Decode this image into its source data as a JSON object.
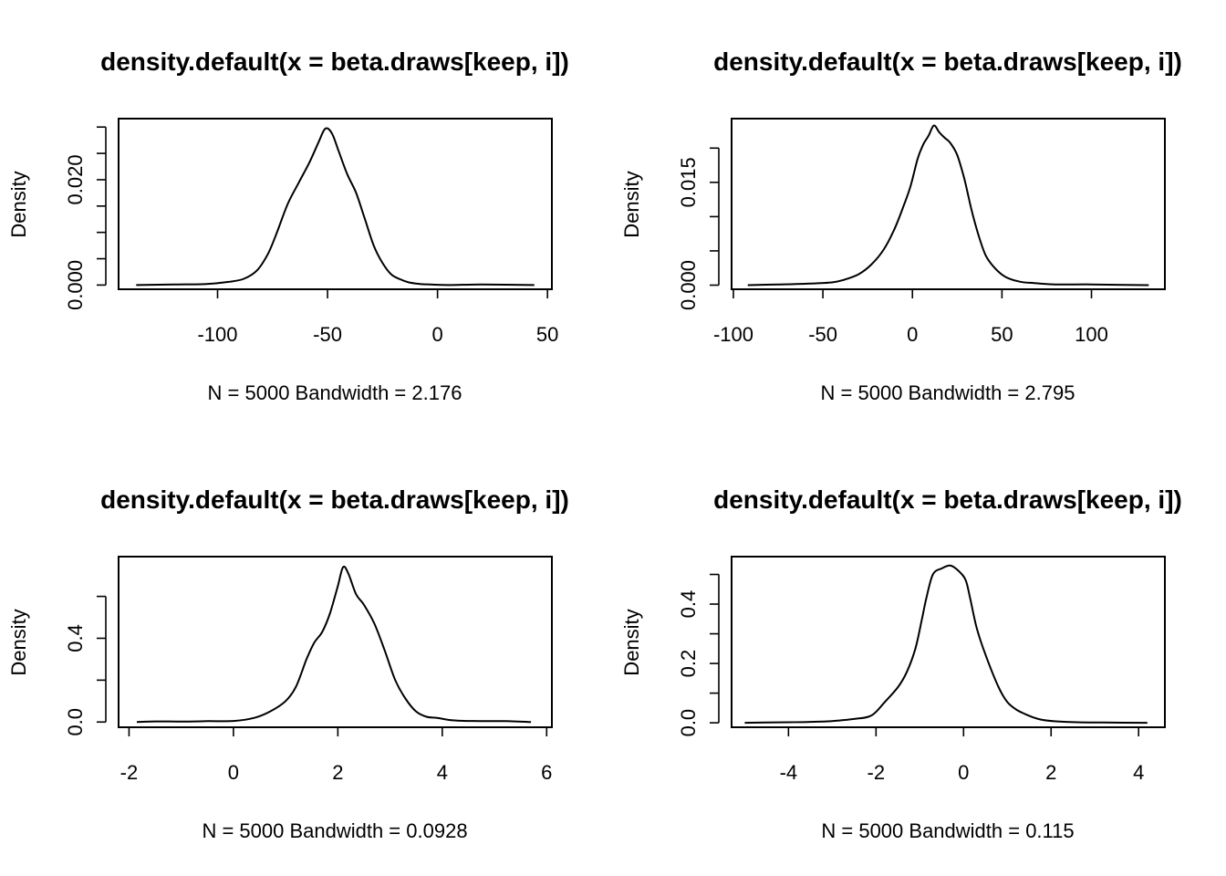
{
  "chart_data": [
    {
      "type": "line",
      "title": "density.default(x = beta.draws[keep, i])",
      "xlabel": "N = 5000   Bandwidth = 2.176",
      "ylabel": "Density",
      "xlim": [
        -145,
        52
      ],
      "ylim": [
        -0.0008,
        0.0316
      ],
      "xticks": [
        -100,
        -50,
        0,
        50
      ],
      "xtick_labels": [
        "-100",
        "-50",
        "0",
        "50"
      ],
      "yticks": [
        0,
        0.005,
        0.01,
        0.015,
        0.02,
        0.025,
        0.03
      ],
      "ytick_labels": [
        "0.000",
        "",
        "",
        "",
        "0.020",
        "",
        ""
      ],
      "x": [
        -137,
        -120,
        -105,
        -95,
        -88,
        -82,
        -77,
        -73,
        -68,
        -63,
        -58,
        -54,
        -51,
        -48,
        -45,
        -41,
        -37,
        -33,
        -29,
        -25,
        -21,
        -17,
        -13,
        -8,
        -3,
        5,
        20,
        44
      ],
      "y": [
        0,
        0.0001,
        0.0002,
        0.0006,
        0.0012,
        0.0028,
        0.006,
        0.01,
        0.0155,
        0.0195,
        0.0235,
        0.0272,
        0.0297,
        0.0288,
        0.0255,
        0.021,
        0.0175,
        0.0125,
        0.0075,
        0.0042,
        0.002,
        0.0011,
        0.0005,
        0.0002,
        0.0001,
        0,
        0.0001,
        0
      ]
    },
    {
      "type": "line",
      "title": "density.default(x = beta.draws[keep, i])",
      "xlabel": "N = 5000   Bandwidth = 2.795",
      "ylabel": "Density",
      "xlim": [
        -101,
        141
      ],
      "ylim": [
        -0.0006,
        0.0243
      ],
      "xticks": [
        -100,
        -50,
        0,
        50,
        100
      ],
      "xtick_labels": [
        "-100",
        "-50",
        "0",
        "50",
        "100"
      ],
      "yticks": [
        0,
        0.005,
        0.01,
        0.015,
        0.02
      ],
      "ytick_labels": [
        "0.000",
        "",
        "",
        "0.015",
        ""
      ],
      "x": [
        -92,
        -75,
        -60,
        -45,
        -38,
        -30,
        -23,
        -16,
        -10,
        -5,
        -1,
        3,
        6,
        9,
        12,
        15,
        18,
        21,
        25,
        29,
        33,
        37,
        41,
        46,
        52,
        60,
        68,
        80,
        100,
        132
      ],
      "y": [
        0,
        0.0001,
        0.0002,
        0.0004,
        0.0008,
        0.0016,
        0.003,
        0.0052,
        0.0082,
        0.0115,
        0.0145,
        0.0185,
        0.0205,
        0.0218,
        0.0233,
        0.0223,
        0.0215,
        0.0208,
        0.019,
        0.0155,
        0.011,
        0.0072,
        0.0043,
        0.0025,
        0.0012,
        0.0005,
        0.0003,
        0.0001,
        0.0001,
        0
      ]
    },
    {
      "type": "line",
      "title": "density.default(x = beta.draws[keep, i])",
      "xlabel": "N = 5000   Bandwidth = 0.0928",
      "ylabel": "Density",
      "xlim": [
        -2.2,
        6.1
      ],
      "ylim": [
        -0.025,
        0.79
      ],
      "xticks": [
        -2,
        0,
        2,
        4,
        6
      ],
      "xtick_labels": [
        "-2",
        "0",
        "2",
        "4",
        "6"
      ],
      "yticks": [
        0,
        0.2,
        0.4,
        0.6
      ],
      "ytick_labels": [
        "0.0",
        "",
        "0.4",
        ""
      ],
      "x": [
        -1.85,
        -1.5,
        -1.0,
        -0.5,
        0,
        0.4,
        0.7,
        1.0,
        1.2,
        1.4,
        1.55,
        1.7,
        1.85,
        2.0,
        2.1,
        2.2,
        2.35,
        2.5,
        2.7,
        2.9,
        3.1,
        3.3,
        3.5,
        3.7,
        3.9,
        4.2,
        4.6,
        5.2,
        5.7
      ],
      "y": [
        0,
        0.003,
        0.002,
        0.004,
        0.005,
        0.02,
        0.05,
        0.1,
        0.17,
        0.3,
        0.38,
        0.43,
        0.52,
        0.65,
        0.74,
        0.71,
        0.61,
        0.56,
        0.47,
        0.34,
        0.2,
        0.11,
        0.05,
        0.025,
        0.02,
        0.008,
        0.005,
        0.004,
        0
      ]
    },
    {
      "type": "line",
      "title": "density.default(x = beta.draws[keep, i])",
      "xlabel": "N = 5000   Bandwidth = 0.115",
      "ylabel": "Density",
      "xlim": [
        -5.3,
        4.6
      ],
      "ylim": [
        -0.015,
        0.56
      ],
      "xticks": [
        -4,
        -2,
        0,
        2,
        4
      ],
      "xtick_labels": [
        "-4",
        "-2",
        "0",
        "2",
        "4"
      ],
      "yticks": [
        0,
        0.1,
        0.2,
        0.3,
        0.4,
        0.5
      ],
      "ytick_labels": [
        "0.0",
        "",
        "0.2",
        "",
        "0.4",
        ""
      ],
      "x": [
        -5.0,
        -4.5,
        -4.0,
        -3.5,
        -3.0,
        -2.5,
        -2.1,
        -1.8,
        -1.5,
        -1.3,
        -1.1,
        -0.95,
        -0.85,
        -0.7,
        -0.5,
        -0.3,
        -0.1,
        0.05,
        0.15,
        0.3,
        0.5,
        0.8,
        1.0,
        1.2,
        1.4,
        1.6,
        1.8,
        2.1,
        2.6,
        3.2,
        4.2
      ],
      "y": [
        0,
        0.001,
        0.002,
        0.003,
        0.006,
        0.013,
        0.025,
        0.07,
        0.12,
        0.17,
        0.25,
        0.35,
        0.42,
        0.5,
        0.52,
        0.53,
        0.51,
        0.48,
        0.42,
        0.32,
        0.23,
        0.12,
        0.07,
        0.045,
        0.03,
        0.018,
        0.01,
        0.005,
        0.002,
        0.001,
        0
      ]
    }
  ]
}
